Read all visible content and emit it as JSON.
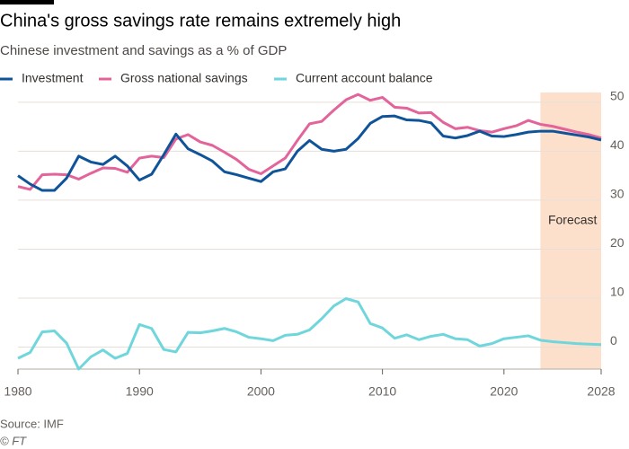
{
  "chart_data": {
    "type": "line",
    "title": "China's gross savings rate remains extremely high",
    "subtitle": "Chinese investment and savings as a % of GDP",
    "source": "Source: IMF",
    "credit": "© FT",
    "x": [
      1980,
      1981,
      1982,
      1983,
      1984,
      1985,
      1986,
      1987,
      1988,
      1989,
      1990,
      1991,
      1992,
      1993,
      1994,
      1995,
      1996,
      1997,
      1998,
      1999,
      2000,
      2001,
      2002,
      2003,
      2004,
      2005,
      2006,
      2007,
      2008,
      2009,
      2010,
      2011,
      2012,
      2013,
      2014,
      2015,
      2016,
      2017,
      2018,
      2019,
      2020,
      2021,
      2022,
      2023,
      2024,
      2025,
      2026,
      2027,
      2028
    ],
    "series": [
      {
        "name": "Investment",
        "color": "#0f5499",
        "values": [
          35,
          33.3,
          32,
          32,
          34.5,
          39,
          37.8,
          37.3,
          39,
          37,
          34.1,
          35.3,
          39.3,
          43.5,
          40.5,
          39.3,
          38,
          35.8,
          35.2,
          34.5,
          33.8,
          35.8,
          36.4,
          40,
          42.2,
          40.4,
          40,
          40.4,
          42.6,
          45.7,
          47.1,
          47.2,
          46.4,
          46.3,
          45.8,
          43.1,
          42.7,
          43.2,
          44.1,
          43.1,
          43,
          43.4,
          43.9,
          44.1,
          44.1,
          43.7,
          43.3,
          42.9,
          42.3
        ]
      },
      {
        "name": "Gross national savings",
        "color": "#e3649a",
        "values": [
          32.8,
          32.2,
          35.2,
          35.3,
          35.2,
          34.3,
          35.5,
          36.6,
          36.5,
          35.7,
          38.6,
          39,
          38.7,
          42.5,
          43.4,
          41.9,
          41.2,
          39.8,
          38.3,
          36.3,
          35.4,
          37,
          38.6,
          42.2,
          45.6,
          46.1,
          48.4,
          50.5,
          51.6,
          50.4,
          51,
          49,
          48.8,
          47.8,
          47.9,
          45.9,
          44.6,
          44.9,
          44.2,
          43.9,
          44.6,
          45.2,
          46.3,
          45.5,
          45.1,
          44.5,
          43.9,
          43.4,
          42.7
        ]
      },
      {
        "name": "Current account balance",
        "color": "#6fd6dc",
        "values": [
          -2.3,
          -1.1,
          3.1,
          3.3,
          0.8,
          -4.5,
          -2,
          -0.6,
          -2.3,
          -1.3,
          4.6,
          3.8,
          -0.5,
          -1,
          3,
          2.9,
          3.3,
          3.8,
          3.1,
          2,
          1.7,
          1.3,
          2.4,
          2.6,
          3.5,
          5.8,
          8.4,
          9.9,
          9.2,
          4.8,
          3.9,
          1.8,
          2.5,
          1.5,
          2.2,
          2.6,
          1.7,
          1.5,
          0.2,
          0.7,
          1.7,
          2,
          2.3,
          1.4,
          1.1,
          0.9,
          0.7,
          0.6,
          0.5
        ]
      }
    ],
    "forecast": {
      "start": 2023,
      "end": 2028,
      "label": "Forecast",
      "color": "#fde0cc"
    },
    "xlim": [
      1980,
      2028
    ],
    "xticks": [
      1980,
      1990,
      2000,
      2010,
      2020,
      2028
    ],
    "ylim": [
      -4.5,
      52
    ],
    "yticks": [
      0,
      10,
      20,
      30,
      40,
      50
    ],
    "grid": true
  }
}
